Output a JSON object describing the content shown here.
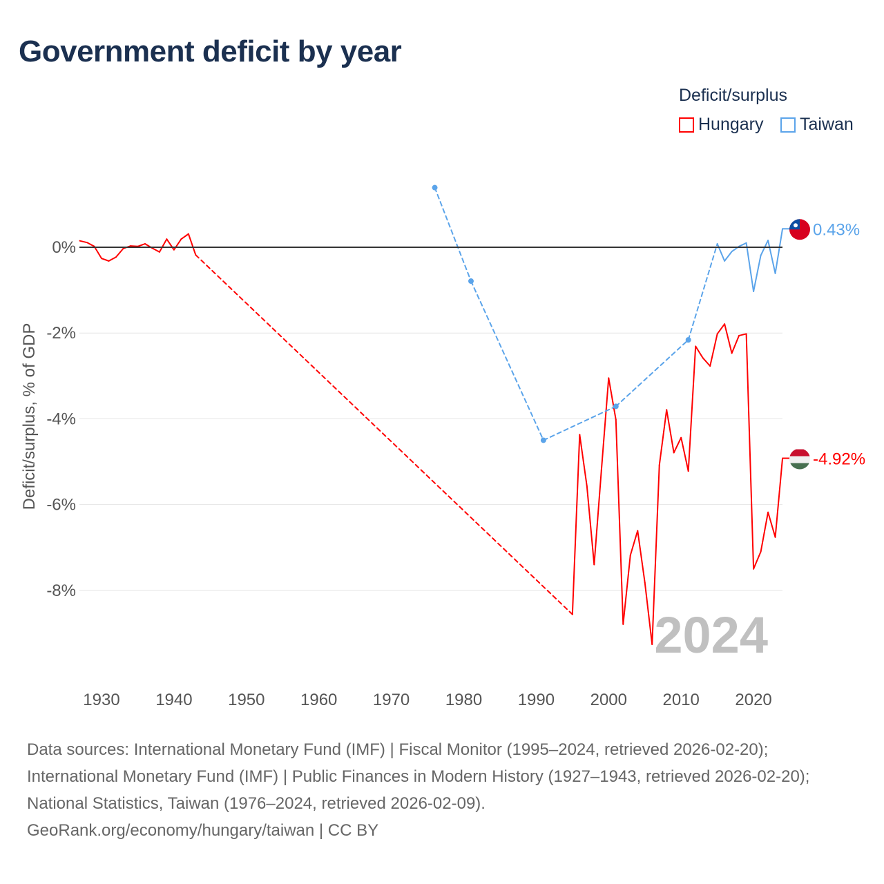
{
  "title": "Government deficit by year",
  "legend": {
    "title": "Deficit/surplus",
    "items": [
      {
        "name": "Hungary",
        "color": "#ff0000"
      },
      {
        "name": "Taiwan",
        "color": "#5ba4ea"
      }
    ]
  },
  "footer": {
    "sources": "Data sources: International Monetary Fund (IMF) | Fiscal Monitor (1995–2024, retrieved 2026-02-20); International Monetary Fund (IMF) | Public Finances in Modern History (1927–1943, retrieved 2026-02-20); National Statistics, Taiwan (1976–2024, retrieved 2026-02-09).",
    "credit": "GeoRank.org/economy/hungary/taiwan | CC BY"
  },
  "chart_data": {
    "type": "line",
    "title": "Government deficit by year",
    "xlabel": "",
    "ylabel": "Deficit/surplus, % of GDP",
    "xlim": [
      1927,
      2024
    ],
    "ylim": [
      -10,
      2
    ],
    "xticks": [
      "1930",
      "1940",
      "1950",
      "1960",
      "1970",
      "1980",
      "1990",
      "2000",
      "2010",
      "2020"
    ],
    "yticks": [
      {
        "v": 0,
        "label": "0%"
      },
      {
        "v": -2,
        "label": "-2%"
      },
      {
        "v": -4,
        "label": "-4%"
      },
      {
        "v": -6,
        "label": "-6%"
      },
      {
        "v": -8,
        "label": "-8%"
      }
    ],
    "year_label": "2024",
    "series": [
      {
        "name": "Hungary",
        "color": "#ff0000",
        "end_label": "-4.92%",
        "x": [
          1927,
          1928,
          1929,
          1930,
          1931,
          1932,
          1933,
          1934,
          1935,
          1936,
          1937,
          1938,
          1939,
          1940,
          1941,
          1942,
          1943,
          1995,
          1996,
          1997,
          1998,
          1999,
          2000,
          2001,
          2002,
          2003,
          2004,
          2005,
          2006,
          2007,
          2008,
          2009,
          2010,
          2011,
          2012,
          2013,
          2014,
          2015,
          2016,
          2017,
          2018,
          2019,
          2020,
          2021,
          2022,
          2023,
          2024
        ],
        "y": [
          0.15,
          0.11,
          0.02,
          -0.26,
          -0.32,
          -0.23,
          -0.03,
          0.03,
          0.02,
          0.08,
          -0.02,
          -0.11,
          0.19,
          -0.06,
          0.19,
          0.31,
          -0.18,
          -8.56,
          -4.37,
          -5.57,
          -7.4,
          -5.2,
          -3.05,
          -4.02,
          -8.79,
          -7.18,
          -6.61,
          -7.82,
          -9.26,
          -5.08,
          -3.79,
          -4.79,
          -4.44,
          -5.22,
          -2.31,
          -2.58,
          -2.77,
          -2.02,
          -1.79,
          -2.47,
          -2.06,
          -2.02,
          -7.5,
          -7.1,
          -6.18,
          -6.76,
          -4.92
        ]
      },
      {
        "name": "Taiwan",
        "color": "#5ba4ea",
        "end_label": "0.43%",
        "x": [
          1976,
          1981,
          1991,
          2001,
          2011,
          2015,
          2016,
          2017,
          2018,
          2019,
          2020,
          2021,
          2022,
          2023,
          2024
        ],
        "y": [
          1.39,
          -0.79,
          -4.5,
          -3.71,
          -2.16,
          0.08,
          -0.32,
          -0.1,
          0.02,
          0.1,
          -1.03,
          -0.19,
          0.16,
          -0.61,
          0.43
        ]
      }
    ]
  }
}
